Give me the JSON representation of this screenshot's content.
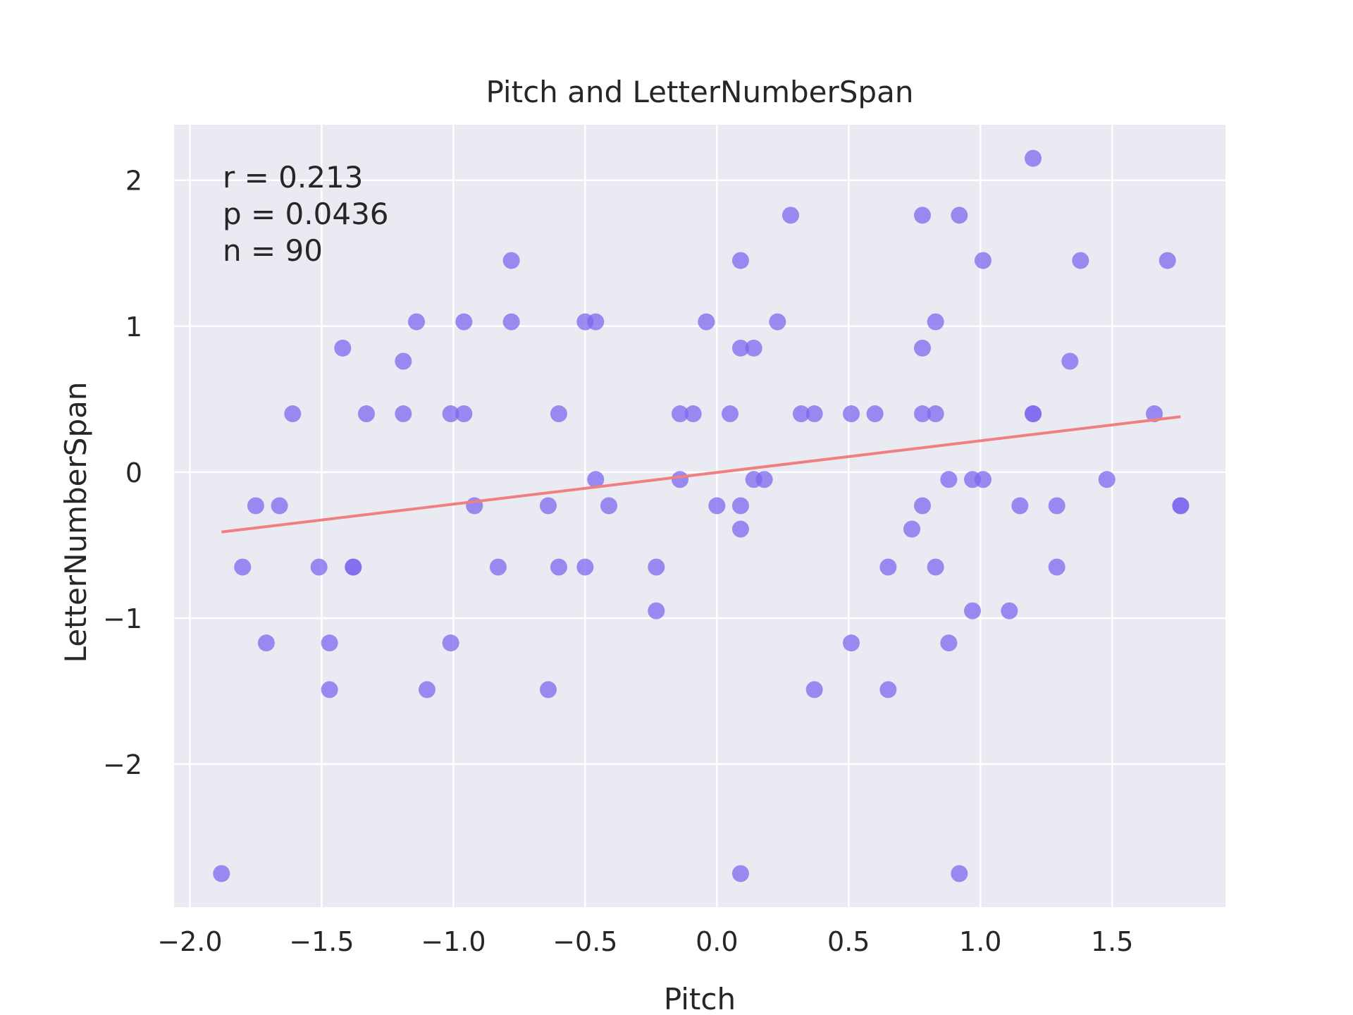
{
  "chart_data": {
    "type": "scatter",
    "title": "Pitch and LetterNumberSpan",
    "xlabel": "Pitch",
    "ylabel": "LetterNumberSpan",
    "xlim": [
      -2.06,
      1.93
    ],
    "ylim": [
      -2.98,
      2.38
    ],
    "xticks": [
      -2.0,
      -1.5,
      -1.0,
      -0.5,
      0.0,
      0.5,
      1.0,
      1.5
    ],
    "xtick_labels": [
      "−2.0",
      "−1.5",
      "−1.0",
      "−0.5",
      "0.0",
      "0.5",
      "1.0",
      "1.5"
    ],
    "yticks": [
      -2,
      -1,
      0,
      1,
      2
    ],
    "ytick_labels": [
      "−2",
      "−1",
      "0",
      "1",
      "2"
    ],
    "grid": true,
    "annotations": [
      "r = 0.213",
      "p = 0.0436",
      "n = 90"
    ],
    "colors": {
      "background": "#eaeaf2",
      "grid": "#ffffff",
      "points": "#7b68ee",
      "fit_line": "#f08080",
      "text": "#262626"
    },
    "fit_line": {
      "x": [
        -1.88,
        1.76
      ],
      "y": [
        -0.41,
        0.38
      ]
    },
    "points": [
      {
        "x": -1.88,
        "y": -2.75
      },
      {
        "x": -1.8,
        "y": -0.65
      },
      {
        "x": -1.75,
        "y": -0.23
      },
      {
        "x": -1.71,
        "y": -1.17
      },
      {
        "x": -1.66,
        "y": -0.23
      },
      {
        "x": -1.61,
        "y": 0.4
      },
      {
        "x": -1.51,
        "y": -0.65
      },
      {
        "x": -1.47,
        "y": -1.17
      },
      {
        "x": -1.47,
        "y": -1.49
      },
      {
        "x": -1.42,
        "y": 0.85
      },
      {
        "x": -1.38,
        "y": -0.65
      },
      {
        "x": -1.38,
        "y": -0.65
      },
      {
        "x": -1.33,
        "y": 0.4
      },
      {
        "x": -1.19,
        "y": 0.76
      },
      {
        "x": -1.19,
        "y": 0.4
      },
      {
        "x": -1.14,
        "y": 1.03
      },
      {
        "x": -1.1,
        "y": -1.49
      },
      {
        "x": -1.01,
        "y": -1.17
      },
      {
        "x": -1.01,
        "y": 0.4
      },
      {
        "x": -0.96,
        "y": 0.4
      },
      {
        "x": -0.96,
        "y": 1.03
      },
      {
        "x": -0.92,
        "y": -0.23
      },
      {
        "x": -0.83,
        "y": -0.65
      },
      {
        "x": -0.78,
        "y": 1.45
      },
      {
        "x": -0.78,
        "y": 1.03
      },
      {
        "x": -0.64,
        "y": -0.23
      },
      {
        "x": -0.64,
        "y": -1.49
      },
      {
        "x": -0.6,
        "y": 0.4
      },
      {
        "x": -0.6,
        "y": -0.65
      },
      {
        "x": -0.5,
        "y": 1.03
      },
      {
        "x": -0.5,
        "y": -0.65
      },
      {
        "x": -0.46,
        "y": 1.03
      },
      {
        "x": -0.46,
        "y": -0.05
      },
      {
        "x": -0.41,
        "y": -0.23
      },
      {
        "x": -0.23,
        "y": -0.65
      },
      {
        "x": -0.23,
        "y": -0.95
      },
      {
        "x": -0.14,
        "y": 0.4
      },
      {
        "x": -0.14,
        "y": -0.05
      },
      {
        "x": -0.09,
        "y": 0.4
      },
      {
        "x": -0.04,
        "y": 1.03
      },
      {
        "x": 0.0,
        "y": -0.23
      },
      {
        "x": 0.05,
        "y": 0.4
      },
      {
        "x": 0.09,
        "y": 1.45
      },
      {
        "x": 0.09,
        "y": 0.85
      },
      {
        "x": 0.09,
        "y": -0.23
      },
      {
        "x": 0.09,
        "y": -0.39
      },
      {
        "x": 0.09,
        "y": -2.75
      },
      {
        "x": 0.14,
        "y": 0.85
      },
      {
        "x": 0.14,
        "y": -0.05
      },
      {
        "x": 0.18,
        "y": -0.05
      },
      {
        "x": 0.23,
        "y": 1.03
      },
      {
        "x": 0.28,
        "y": 1.76
      },
      {
        "x": 0.32,
        "y": 0.4
      },
      {
        "x": 0.37,
        "y": 0.4
      },
      {
        "x": 0.37,
        "y": -1.49
      },
      {
        "x": 0.51,
        "y": 0.4
      },
      {
        "x": 0.51,
        "y": -1.17
      },
      {
        "x": 0.6,
        "y": 0.4
      },
      {
        "x": 0.65,
        "y": -0.65
      },
      {
        "x": 0.65,
        "y": -1.49
      },
      {
        "x": 0.74,
        "y": -0.39
      },
      {
        "x": 0.78,
        "y": 1.76
      },
      {
        "x": 0.78,
        "y": 0.85
      },
      {
        "x": 0.78,
        "y": 0.4
      },
      {
        "x": 0.78,
        "y": -0.23
      },
      {
        "x": 0.83,
        "y": 1.03
      },
      {
        "x": 0.83,
        "y": 0.4
      },
      {
        "x": 0.83,
        "y": -0.65
      },
      {
        "x": 0.88,
        "y": -0.05
      },
      {
        "x": 0.88,
        "y": -1.17
      },
      {
        "x": 0.92,
        "y": 1.76
      },
      {
        "x": 0.92,
        "y": -2.75
      },
      {
        "x": 0.97,
        "y": -0.05
      },
      {
        "x": 0.97,
        "y": -0.95
      },
      {
        "x": 1.01,
        "y": 1.45
      },
      {
        "x": 1.01,
        "y": -0.05
      },
      {
        "x": 1.11,
        "y": -0.95
      },
      {
        "x": 1.15,
        "y": -0.23
      },
      {
        "x": 1.2,
        "y": 2.15
      },
      {
        "x": 1.2,
        "y": 0.4
      },
      {
        "x": 1.2,
        "y": 0.4
      },
      {
        "x": 1.29,
        "y": -0.23
      },
      {
        "x": 1.29,
        "y": -0.65
      },
      {
        "x": 1.34,
        "y": 0.76
      },
      {
        "x": 1.38,
        "y": 1.45
      },
      {
        "x": 1.48,
        "y": -0.05
      },
      {
        "x": 1.66,
        "y": 0.4
      },
      {
        "x": 1.71,
        "y": 1.45
      },
      {
        "x": 1.76,
        "y": -0.23
      },
      {
        "x": 1.76,
        "y": -0.23
      }
    ]
  }
}
